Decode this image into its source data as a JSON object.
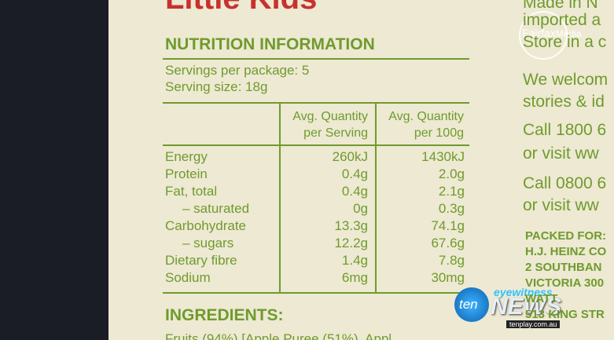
{
  "label": {
    "brand": "Little Kids",
    "title": "NUTRITION INFORMATION",
    "servings_per_package": "Servings per package: 5",
    "serving_size": "Serving size: 18g",
    "table": {
      "header": [
        [
          "Avg. Quantity",
          "per Serving"
        ],
        [
          "Avg. Quantity",
          "per 100g"
        ]
      ],
      "rows": [
        [
          "Energy",
          "260kJ",
          "1430kJ"
        ],
        [
          "Protein",
          "0.4g",
          "2.0g"
        ],
        [
          "Fat, total",
          "0.4g",
          "2.1g"
        ],
        [
          "– saturated",
          "0g",
          "0.3g"
        ],
        [
          "Carbohydrate",
          "13.3g",
          "74.1g"
        ],
        [
          "– sugars",
          "12.2g",
          "67.6g"
        ],
        [
          "Dietary fibre",
          "1.4g",
          "7.8g"
        ],
        [
          "Sodium",
          "6mg",
          "30mg"
        ]
      ]
    },
    "ingredients_heading": "INGREDIENTS:",
    "ingredients": "Fruits (94%) [Apple Puree (51%), Appl"
  },
  "side_panel": {
    "lines": [
      "Made in N",
      "imported a",
      "Store in a c",
      "We welcom",
      "stories & id",
      "Call 1800 6",
      "or visit ww",
      "Call 0800 6",
      "or visit ww"
    ],
    "packed_lines": [
      "PACKED FOR:",
      "H.J. HEINZ CO",
      "2 SOUTHBAN",
      "VICTORIA 300",
      "WATT",
      "513 KING STR"
    ]
  },
  "overlay": {
    "watermark_brand": "Fairfax",
    "watermark_suffix": "Media",
    "logo": "ten",
    "show": "eyewitness",
    "show_name": "NEWS",
    "website": "tenplay.com.au"
  }
}
